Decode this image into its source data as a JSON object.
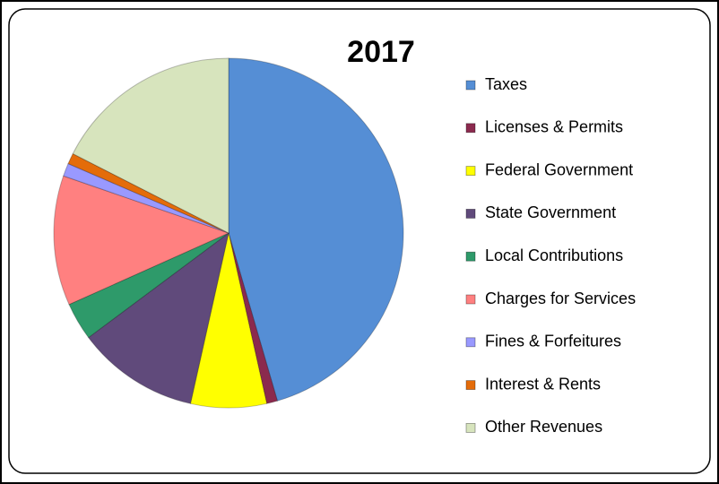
{
  "chart_data": {
    "type": "pie",
    "title": "2017",
    "categories": [
      "Taxes",
      "Licenses & Permits",
      "Federal Government",
      "State Government",
      "Local Contributions",
      "Charges for Services",
      "Fines & Forfeitures",
      "Interest & Rents",
      "Other Revenues"
    ],
    "values": [
      45.5,
      1,
      7,
      11.3,
      3.5,
      12,
      1.2,
      1,
      17.5
    ],
    "colors": [
      "#558ed5",
      "#8b2a4e",
      "#ffff00",
      "#604a7b",
      "#2e9a6a",
      "#ff8080",
      "#9999ff",
      "#e46c0a",
      "#d7e4bd"
    ],
    "legend": "right"
  }
}
